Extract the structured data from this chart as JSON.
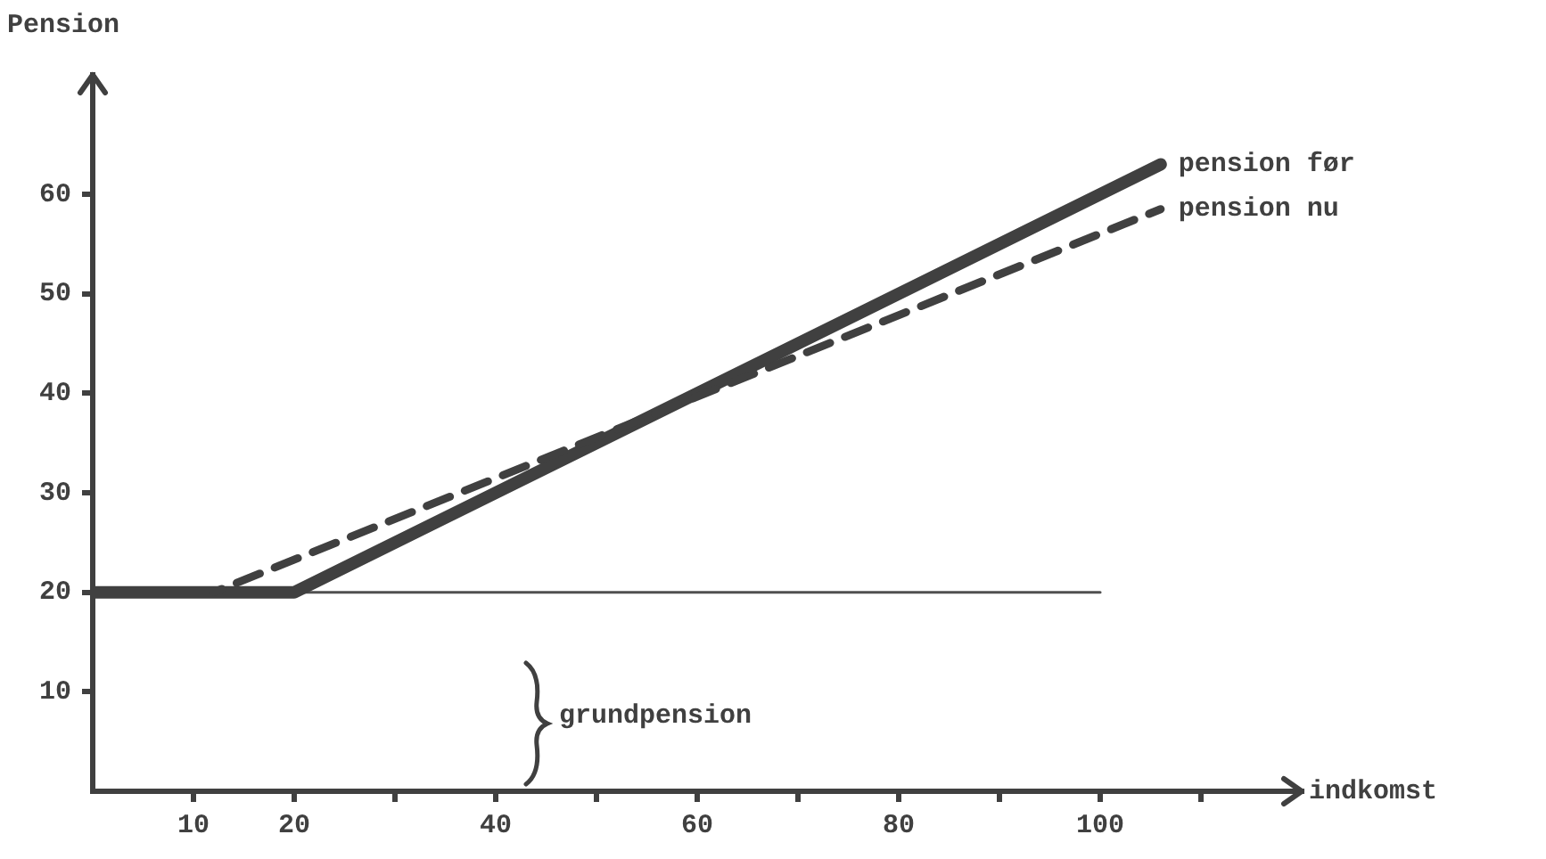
{
  "chart_data": {
    "type": "line",
    "xlabel": "indkomst",
    "ylabel": "Pension",
    "xlim": [
      0,
      120
    ],
    "ylim": [
      0,
      72
    ],
    "xticks": [
      10,
      20,
      {
        "value": 30,
        "label": null
      },
      40,
      {
        "value": 50,
        "label": null
      },
      60,
      {
        "value": 70,
        "label": null
      },
      80,
      {
        "value": 90,
        "label": null
      },
      100,
      {
        "value": 110,
        "label": null
      }
    ],
    "yticks": [
      10,
      20,
      30,
      40,
      50,
      60
    ],
    "series": [
      {
        "x": [
          0,
          100
        ],
        "values": [
          20,
          20
        ],
        "color": "#505050",
        "line_style": "solid"
      },
      {
        "name": "pension før",
        "x": [
          0,
          20,
          106
        ],
        "values": [
          20,
          20,
          63
        ],
        "color": "#404040",
        "line_style": "solid"
      },
      {
        "name": "pension nu",
        "x": [
          12,
          106
        ],
        "values": [
          20,
          58.5
        ],
        "color": "#404040",
        "line_style": "dashed"
      }
    ],
    "annotations": [
      "grundpension"
    ],
    "grid": false,
    "legend": false,
    "marker": "none"
  }
}
